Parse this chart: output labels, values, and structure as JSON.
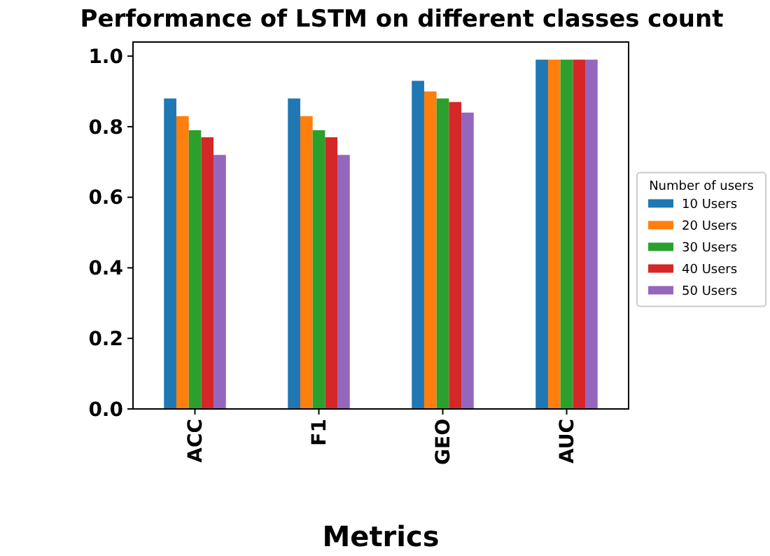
{
  "chart_data": {
    "type": "bar",
    "title": "Performance of LSTM on different classes count",
    "xlabel": "Metrics",
    "legend_title": "Number of users",
    "categories": [
      "ACC",
      "F1",
      "GEO",
      "AUC"
    ],
    "series": [
      {
        "name": "10 Users",
        "color": "#1f77b4",
        "values": [
          0.88,
          0.88,
          0.93,
          0.99
        ]
      },
      {
        "name": "20 Users",
        "color": "#ff7f0e",
        "values": [
          0.83,
          0.83,
          0.9,
          0.99
        ]
      },
      {
        "name": "30 Users",
        "color": "#2ca02c",
        "values": [
          0.79,
          0.79,
          0.88,
          0.99
        ]
      },
      {
        "name": "40 Users",
        "color": "#d62728",
        "values": [
          0.77,
          0.77,
          0.87,
          0.99
        ]
      },
      {
        "name": "50 Users",
        "color": "#9467bd",
        "values": [
          0.72,
          0.72,
          0.84,
          0.99
        ]
      }
    ],
    "ylim": [
      0,
      1.04
    ],
    "yticks": [
      {
        "value": 0,
        "label": "0.0"
      },
      {
        "value": 0.2,
        "label": "0.2"
      },
      {
        "value": 0.4,
        "label": "0.4"
      },
      {
        "value": 0.6,
        "label": "0.6"
      },
      {
        "value": 0.8,
        "label": "0.8"
      },
      {
        "value": 1,
        "label": "1.0"
      }
    ],
    "legend": "right",
    "grid": false
  }
}
